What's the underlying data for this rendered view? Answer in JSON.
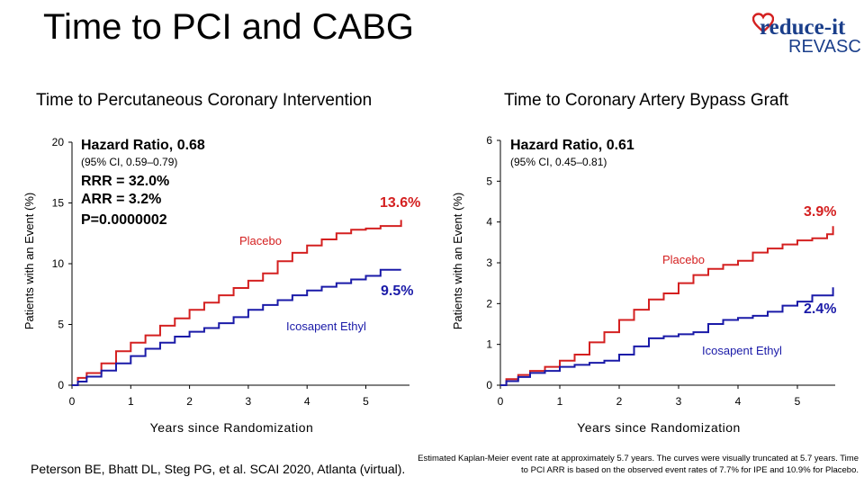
{
  "slide_title": "Time to PCI and CABG",
  "logo": {
    "top": "reduce-it",
    "bottom": "REVASC"
  },
  "footer": {
    "citation": "Peterson BE, Bhatt DL, Steg PG, et al. SCAI 2020, Atlanta (virtual).",
    "note": "Estimated Kaplan-Meier event rate at approximately 5.7 years. The curves were visually truncated at 5.7 years. Time to PCI ARR is based on the observed event rates of 7.7% for IPE and 10.9% for Placebo."
  },
  "colors": {
    "placebo": "#d42020",
    "icosapent": "#1a1aa8"
  },
  "chart_data": [
    {
      "type": "line",
      "title": "Time to Percutaneous Coronary Intervention",
      "xlabel": "Years since Randomization",
      "ylabel": "Patients with an Event (%)",
      "xlim": [
        0,
        5.7
      ],
      "ylim": [
        0,
        20
      ],
      "xticks": [
        "0",
        "1",
        "2",
        "3",
        "4",
        "5"
      ],
      "yticks": [
        "0",
        "5",
        "10",
        "15",
        "20"
      ],
      "annotations": {
        "hr": "Hazard Ratio, 0.68",
        "ci": "(95% CI, 0.59–0.79)",
        "rrr": "RRR = 32.0%",
        "arr": "ARR = 3.2%",
        "p": "P=0.0000002",
        "placebo_end": "13.6%",
        "ipe_end": "9.5%"
      },
      "series": [
        {
          "name": "Placebo",
          "x": [
            0,
            0.1,
            0.25,
            0.5,
            0.75,
            1.0,
            1.25,
            1.5,
            1.75,
            2.0,
            2.25,
            2.5,
            2.75,
            3.0,
            3.25,
            3.5,
            3.75,
            4.0,
            4.25,
            4.5,
            4.75,
            5.0,
            5.25,
            5.5,
            5.6
          ],
          "y": [
            0,
            0.6,
            1.0,
            1.8,
            2.8,
            3.5,
            4.1,
            4.9,
            5.5,
            6.2,
            6.8,
            7.4,
            8.0,
            8.6,
            9.2,
            10.2,
            10.9,
            11.5,
            12.0,
            12.5,
            12.8,
            12.9,
            13.1,
            13.1,
            13.6
          ]
        },
        {
          "name": "Icosapent Ethyl",
          "x": [
            0,
            0.1,
            0.25,
            0.5,
            0.75,
            1.0,
            1.25,
            1.5,
            1.75,
            2.0,
            2.25,
            2.5,
            2.75,
            3.0,
            3.25,
            3.5,
            3.75,
            4.0,
            4.25,
            4.5,
            4.75,
            5.0,
            5.25,
            5.6
          ],
          "y": [
            0,
            0.3,
            0.7,
            1.2,
            1.8,
            2.4,
            3.0,
            3.5,
            4.0,
            4.4,
            4.7,
            5.1,
            5.6,
            6.2,
            6.6,
            7.0,
            7.4,
            7.8,
            8.1,
            8.4,
            8.7,
            9.0,
            9.5,
            9.5
          ]
        }
      ]
    },
    {
      "type": "line",
      "title": "Time to Coronary Artery Bypass Graft",
      "xlabel": "Years since Randomization",
      "ylabel": "Patients with an Event (%)",
      "xlim": [
        0,
        5.7
      ],
      "ylim": [
        0,
        6
      ],
      "xticks": [
        "0",
        "1",
        "2",
        "3",
        "4",
        "5"
      ],
      "yticks": [
        "0",
        "1",
        "2",
        "3",
        "4",
        "5",
        "6"
      ],
      "annotations": {
        "hr": "Hazard Ratio, 0.61",
        "ci": "(95% CI, 0.45–0.81)",
        "placebo_end": "3.9%",
        "ipe_end": "2.4%"
      },
      "series": [
        {
          "name": "Placebo",
          "x": [
            0,
            0.1,
            0.3,
            0.5,
            0.75,
            1.0,
            1.25,
            1.5,
            1.75,
            2.0,
            2.25,
            2.5,
            2.75,
            3.0,
            3.25,
            3.5,
            3.75,
            4.0,
            4.25,
            4.5,
            4.75,
            5.0,
            5.25,
            5.5,
            5.6
          ],
          "y": [
            0,
            0.15,
            0.25,
            0.35,
            0.45,
            0.6,
            0.75,
            1.05,
            1.3,
            1.6,
            1.85,
            2.1,
            2.25,
            2.5,
            2.7,
            2.85,
            2.95,
            3.05,
            3.25,
            3.35,
            3.45,
            3.55,
            3.6,
            3.7,
            3.9
          ]
        },
        {
          "name": "Icosapent Ethyl",
          "x": [
            0,
            0.1,
            0.3,
            0.5,
            0.75,
            1.0,
            1.25,
            1.5,
            1.75,
            2.0,
            2.25,
            2.5,
            2.75,
            3.0,
            3.25,
            3.5,
            3.75,
            4.0,
            4.25,
            4.5,
            4.75,
            5.0,
            5.25,
            5.6
          ],
          "y": [
            0,
            0.1,
            0.2,
            0.3,
            0.35,
            0.45,
            0.5,
            0.55,
            0.6,
            0.75,
            0.95,
            1.15,
            1.2,
            1.25,
            1.3,
            1.5,
            1.6,
            1.65,
            1.7,
            1.8,
            1.95,
            2.05,
            2.2,
            2.4
          ]
        }
      ]
    }
  ]
}
